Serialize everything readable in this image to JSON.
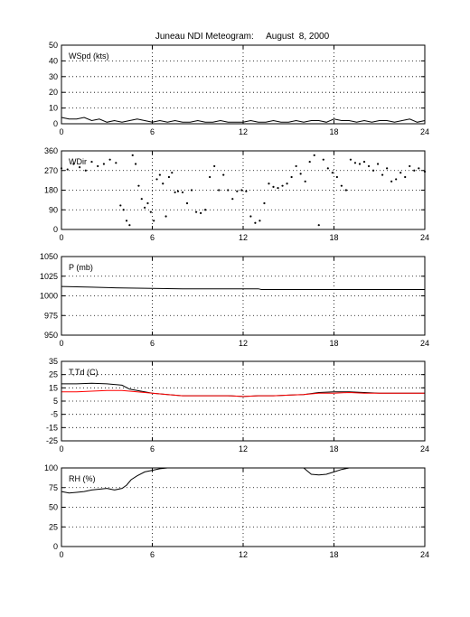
{
  "figure": {
    "title": "Juneau NDI Meteogram:     August  8, 2000"
  },
  "colors": {
    "axes": "#000000",
    "primary_series": "#000000",
    "dewpoint_series": "#ff0000",
    "background": "#ffffff",
    "grid": "#000000"
  },
  "chart_data": [
    {
      "type": "line",
      "label": "WSpd (kts)",
      "x_ticks": [
        0,
        6,
        12,
        18,
        24
      ],
      "x_tick_labels": [
        "0",
        "6",
        "12",
        "18",
        "24"
      ],
      "xlim": [
        0,
        24
      ],
      "ylim": [
        0,
        50
      ],
      "y_ticks": [
        0,
        10,
        20,
        30,
        40,
        50
      ],
      "y_tick_labels": [
        "0",
        "10",
        "20",
        "30",
        "40",
        "50"
      ],
      "grid": true,
      "series": [
        {
          "color": "#000000",
          "style": "line",
          "x": [
            0,
            0.5,
            1,
            1.5,
            2,
            2.5,
            3,
            3.5,
            4,
            4.5,
            5,
            5.5,
            6,
            6.5,
            7,
            7.5,
            8,
            8.5,
            9,
            9.5,
            10,
            10.5,
            11,
            11.5,
            12,
            12.5,
            13,
            13.5,
            14,
            14.5,
            15,
            15.5,
            16,
            16.5,
            17,
            17.5,
            18,
            18.5,
            19,
            19.5,
            20,
            20.5,
            21,
            21.5,
            22,
            22.5,
            23,
            23.5,
            24
          ],
          "y": [
            4,
            3,
            3,
            4,
            2,
            3,
            1,
            2,
            1,
            2,
            3,
            2,
            1,
            2,
            1,
            2,
            1,
            1,
            2,
            1,
            1,
            2,
            1,
            1,
            1,
            2,
            1,
            1,
            2,
            1,
            1,
            2,
            1,
            2,
            2,
            1,
            3,
            2,
            2,
            1,
            2,
            1,
            2,
            2,
            1,
            2,
            3,
            1,
            2
          ]
        }
      ]
    },
    {
      "type": "scatter",
      "label": "WDir",
      "x_ticks": [
        0,
        6,
        12,
        18,
        24
      ],
      "x_tick_labels": [
        "0",
        "6",
        "12",
        "18",
        "24"
      ],
      "xlim": [
        0,
        24
      ],
      "ylim": [
        0,
        360
      ],
      "y_ticks": [
        0,
        90,
        180,
        270,
        360
      ],
      "y_tick_labels": [
        "0",
        "90",
        "180",
        "270",
        "360"
      ],
      "grid": true,
      "series": [
        {
          "color": "#000000",
          "style": "dots",
          "x": [
            0,
            0.4,
            0.8,
            1.2,
            1.6,
            2.0,
            2.4,
            2.8,
            3.2,
            3.6,
            3.9,
            4.1,
            4.3,
            4.5,
            4.7,
            4.9,
            5.1,
            5.3,
            5.5,
            5.7,
            5.9,
            6.1,
            6.3,
            6.5,
            6.7,
            6.9,
            7.1,
            7.3,
            7.5,
            7.7,
            8.0,
            8.3,
            8.6,
            8.9,
            9.2,
            9.5,
            9.8,
            10.1,
            10.4,
            10.7,
            11.0,
            11.3,
            11.6,
            11.9,
            12.2,
            12.5,
            12.8,
            13.1,
            13.4,
            13.7,
            14.0,
            14.3,
            14.6,
            14.9,
            15.2,
            15.5,
            15.8,
            16.1,
            16.4,
            16.7,
            17.0,
            17.3,
            17.6,
            17.9,
            18.2,
            18.5,
            18.8,
            19.1,
            19.4,
            19.7,
            20.0,
            20.3,
            20.6,
            20.9,
            21.2,
            21.5,
            21.8,
            22.1,
            22.4,
            22.7,
            23.0,
            23.3,
            23.6,
            24.0
          ],
          "y": [
            280,
            275,
            300,
            285,
            270,
            310,
            290,
            300,
            320,
            305,
            110,
            90,
            40,
            20,
            340,
            300,
            200,
            140,
            100,
            120,
            80,
            40,
            230,
            250,
            210,
            60,
            240,
            260,
            170,
            175,
            170,
            120,
            180,
            80,
            75,
            90,
            240,
            290,
            180,
            250,
            180,
            140,
            175,
            180,
            175,
            60,
            30,
            40,
            120,
            210,
            195,
            190,
            200,
            210,
            240,
            290,
            255,
            220,
            310,
            340,
            20,
            320,
            280,
            260,
            240,
            200,
            180,
            320,
            305,
            300,
            310,
            290,
            270,
            300,
            250,
            280,
            220,
            230,
            260,
            240,
            290,
            270,
            280,
            265
          ]
        }
      ]
    },
    {
      "type": "line",
      "label": "P (mb)",
      "x_ticks": [
        0,
        6,
        12,
        18,
        24
      ],
      "x_tick_labels": [
        "0",
        "6",
        "12",
        "18",
        "24"
      ],
      "xlim": [
        0,
        24
      ],
      "ylim": [
        950,
        1050
      ],
      "y_ticks": [
        950,
        975,
        1000,
        1025,
        1050
      ],
      "y_tick_labels": [
        "950",
        "975",
        "1000",
        "1025",
        "1050"
      ],
      "grid": true,
      "series": [
        {
          "color": "#000000",
          "style": "line",
          "x": [
            0,
            2,
            4,
            6,
            8,
            10,
            12,
            13,
            13.2,
            16,
            20,
            24
          ],
          "y": [
            1012,
            1011,
            1010,
            1009.5,
            1009,
            1009,
            1009,
            1009,
            1008,
            1008,
            1008,
            1008
          ]
        }
      ]
    },
    {
      "type": "line",
      "label": "T,Td (C)",
      "x_ticks": [
        0,
        6,
        12,
        18,
        24
      ],
      "x_tick_labels": [
        "0",
        "6",
        "12",
        "18",
        "24"
      ],
      "xlim": [
        0,
        24
      ],
      "ylim": [
        -25,
        35
      ],
      "y_ticks": [
        -25,
        -15,
        -5,
        5,
        15,
        25,
        35
      ],
      "y_tick_labels": [
        "-25",
        "-15",
        "-5",
        "5",
        "15",
        "25",
        "35"
      ],
      "grid": true,
      "series": [
        {
          "color": "#000000",
          "style": "line",
          "x": [
            0,
            1,
            2,
            3,
            4,
            4.5,
            5,
            5.5,
            6,
            7,
            8,
            9,
            10,
            11,
            12,
            13,
            14,
            15,
            16,
            17,
            18,
            19,
            20,
            21,
            22,
            23,
            24
          ],
          "y": [
            18,
            18,
            18.5,
            18,
            17,
            14,
            13,
            12,
            11,
            10,
            9,
            9,
            9,
            9,
            8.5,
            9,
            9,
            9.5,
            10,
            11.5,
            12,
            12,
            11.5,
            11,
            11,
            11,
            11
          ]
        },
        {
          "color": "#ff0000",
          "style": "line",
          "x": [
            0,
            1,
            2,
            3,
            4,
            4.5,
            5,
            5.5,
            6,
            7,
            8,
            9,
            10,
            11,
            12,
            13,
            14,
            15,
            16,
            17,
            18,
            19,
            20,
            21,
            22,
            23,
            24
          ],
          "y": [
            12,
            12,
            12.5,
            13,
            13,
            12.5,
            12,
            11.5,
            11,
            10,
            9,
            9,
            9,
            9,
            8.5,
            9,
            9,
            9.5,
            10,
            11,
            11,
            11.5,
            11,
            11,
            11,
            11,
            11
          ]
        }
      ]
    },
    {
      "type": "line",
      "label": "RH (%)",
      "x_ticks": [
        0,
        6,
        12,
        18,
        24
      ],
      "x_tick_labels": [
        "0",
        "6",
        "12",
        "18",
        "24"
      ],
      "xlim": [
        0,
        24
      ],
      "ylim": [
        0,
        100
      ],
      "y_ticks": [
        0,
        25,
        50,
        75,
        100
      ],
      "y_tick_labels": [
        "0",
        "25",
        "50",
        "75",
        "100"
      ],
      "grid": true,
      "series": [
        {
          "color": "#000000",
          "style": "line",
          "x": [
            0,
            0.5,
            1,
            1.5,
            2,
            2.5,
            3,
            3.5,
            4,
            4.3,
            4.6,
            5,
            5.5,
            6,
            6.5,
            7,
            7.5,
            16,
            16.5,
            17,
            17.5,
            18,
            18.5,
            19,
            24
          ],
          "y": [
            70,
            68,
            69,
            70,
            72,
            73,
            74,
            72,
            74,
            78,
            85,
            90,
            95,
            97,
            99,
            100,
            100,
            100,
            92,
            91,
            92,
            95,
            98,
            100,
            100
          ]
        }
      ]
    }
  ]
}
